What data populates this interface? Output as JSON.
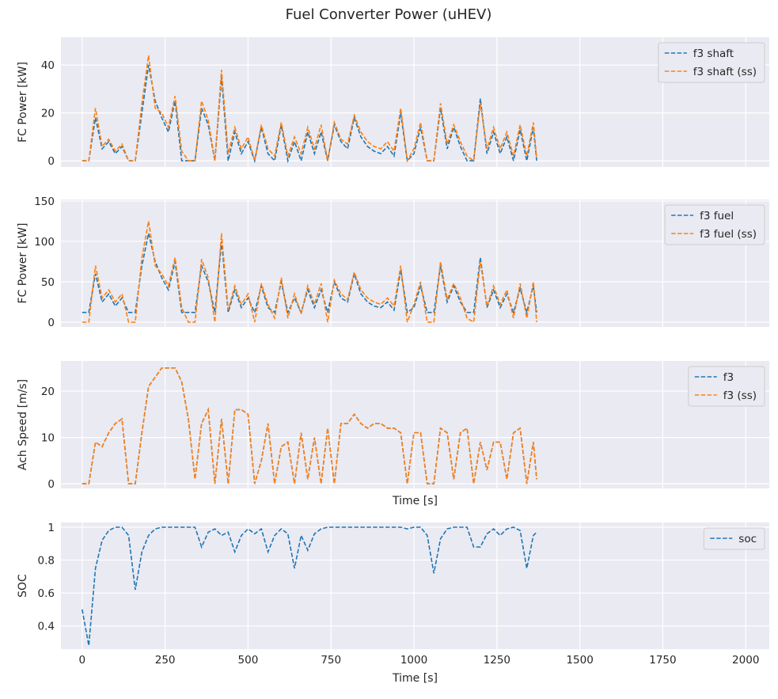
{
  "title": "Fuel Converter Power (uHEV)",
  "chart_data": [
    {
      "type": "line",
      "y_label": "FC Power [kW]",
      "legend": "upper right",
      "x": [
        0,
        20,
        40,
        60,
        80,
        100,
        120,
        140,
        160,
        180,
        200,
        220,
        240,
        260,
        280,
        300,
        320,
        340,
        360,
        380,
        400,
        420,
        440,
        460,
        480,
        500,
        520,
        540,
        560,
        580,
        600,
        620,
        640,
        660,
        680,
        700,
        720,
        740,
        760,
        780,
        800,
        820,
        840,
        860,
        880,
        900,
        920,
        940,
        960,
        980,
        1000,
        1020,
        1040,
        1060,
        1080,
        1100,
        1120,
        1140,
        1160,
        1180,
        1200,
        1220,
        1240,
        1260,
        1280,
        1300,
        1320,
        1340,
        1360,
        1370
      ],
      "ylim": [
        -2.6,
        51.6
      ],
      "yticks": [
        0,
        20,
        40
      ],
      "series": [
        {
          "name": "f3 shaft",
          "color": "#1f77b4",
          "values": [
            0,
            0,
            18,
            5,
            8,
            3,
            6,
            0,
            0,
            20,
            40,
            25,
            18,
            12,
            25,
            0,
            0,
            0,
            22,
            15,
            0,
            35,
            0,
            12,
            3,
            8,
            0,
            14,
            3,
            0,
            15,
            0,
            8,
            0,
            12,
            3,
            12,
            0,
            15,
            8,
            5,
            18,
            10,
            6,
            4,
            3,
            6,
            2,
            20,
            0,
            3,
            14,
            0,
            0,
            22,
            5,
            14,
            6,
            0,
            0,
            26,
            3,
            12,
            3,
            10,
            0,
            13,
            0,
            14,
            0
          ]
        },
        {
          "name": "f3 shaft (ss)",
          "color": "#ff7f0e",
          "values": [
            0,
            0,
            22,
            6,
            9,
            4,
            7,
            0,
            0,
            24,
            44,
            22,
            20,
            14,
            27,
            4,
            0,
            0,
            25,
            17,
            0,
            38,
            3,
            14,
            5,
            10,
            0,
            15,
            5,
            2,
            16,
            2,
            10,
            3,
            14,
            5,
            15,
            0,
            16,
            9,
            7,
            19,
            12,
            8,
            6,
            5,
            8,
            4,
            22,
            0,
            5,
            16,
            0,
            0,
            24,
            7,
            15,
            8,
            2,
            0,
            24,
            5,
            14,
            5,
            12,
            2,
            15,
            2,
            16,
            1
          ]
        }
      ]
    },
    {
      "type": "line",
      "y_label": "FC Power [kW]",
      "legend": "upper right",
      "x": [
        0,
        20,
        40,
        60,
        80,
        100,
        120,
        140,
        160,
        180,
        200,
        220,
        240,
        260,
        280,
        300,
        320,
        340,
        360,
        380,
        400,
        420,
        440,
        460,
        480,
        500,
        520,
        540,
        560,
        580,
        600,
        620,
        640,
        660,
        680,
        700,
        720,
        740,
        760,
        780,
        800,
        820,
        840,
        860,
        880,
        900,
        920,
        940,
        960,
        980,
        1000,
        1020,
        1040,
        1060,
        1080,
        1100,
        1120,
        1140,
        1160,
        1180,
        1200,
        1220,
        1240,
        1260,
        1280,
        1300,
        1320,
        1340,
        1360,
        1370
      ],
      "ylim": [
        -5.9,
        151.9
      ],
      "yticks": [
        0,
        50,
        100,
        150
      ],
      "series": [
        {
          "name": "f3 fuel",
          "color": "#1f77b4",
          "values": [
            12,
            12,
            60,
            25,
            35,
            20,
            30,
            12,
            12,
            70,
            110,
            75,
            55,
            40,
            75,
            12,
            12,
            12,
            70,
            50,
            12,
            100,
            12,
            40,
            18,
            30,
            12,
            45,
            18,
            12,
            50,
            12,
            30,
            12,
            40,
            18,
            40,
            12,
            50,
            30,
            25,
            60,
            35,
            25,
            20,
            18,
            25,
            15,
            65,
            12,
            18,
            45,
            12,
            12,
            70,
            25,
            45,
            25,
            12,
            12,
            80,
            18,
            40,
            18,
            35,
            12,
            42,
            12,
            45,
            12
          ]
        },
        {
          "name": "f3 fuel (ss)",
          "color": "#ff7f0e",
          "values": [
            0,
            0,
            70,
            30,
            40,
            25,
            35,
            0,
            0,
            80,
            125,
            70,
            60,
            45,
            80,
            18,
            0,
            0,
            78,
            55,
            0,
            110,
            15,
            45,
            22,
            35,
            0,
            48,
            22,
            5,
            55,
            5,
            35,
            10,
            45,
            22,
            48,
            0,
            52,
            35,
            28,
            62,
            40,
            30,
            25,
            22,
            30,
            20,
            70,
            0,
            22,
            50,
            0,
            0,
            75,
            28,
            48,
            30,
            5,
            0,
            75,
            20,
            45,
            22,
            40,
            5,
            48,
            5,
            50,
            0
          ]
        }
      ]
    },
    {
      "type": "line",
      "y_label": "Ach Speed [m/s]",
      "x_label": "Time [s]",
      "legend": "upper right",
      "x": [
        0,
        20,
        40,
        60,
        80,
        100,
        120,
        140,
        160,
        180,
        200,
        220,
        240,
        260,
        280,
        300,
        320,
        340,
        360,
        380,
        400,
        420,
        440,
        460,
        480,
        500,
        520,
        540,
        560,
        580,
        600,
        620,
        640,
        660,
        680,
        700,
        720,
        740,
        760,
        780,
        800,
        820,
        840,
        860,
        880,
        900,
        920,
        940,
        960,
        980,
        1000,
        1020,
        1040,
        1060,
        1080,
        1100,
        1120,
        1140,
        1160,
        1180,
        1200,
        1220,
        1240,
        1260,
        1280,
        1300,
        1320,
        1340,
        1360,
        1370
      ],
      "ylim": [
        -1.0,
        26.5
      ],
      "yticks": [
        0,
        10,
        20
      ],
      "series": [
        {
          "name": "f3",
          "color": "#1f77b4",
          "values": [
            0,
            0,
            9,
            8,
            11,
            13,
            14,
            0,
            0,
            11,
            21,
            23,
            25,
            25,
            25,
            22,
            14,
            1,
            13,
            16,
            0,
            14,
            0,
            16,
            16,
            15,
            0,
            5,
            13,
            0,
            8,
            9,
            0,
            11,
            1,
            10,
            0,
            12,
            0,
            13,
            13,
            15,
            13,
            12,
            13,
            13,
            12,
            12,
            11,
            0,
            11,
            11,
            0,
            0,
            12,
            11,
            1,
            11,
            12,
            0,
            9,
            3,
            9,
            9,
            1,
            11,
            12,
            0,
            9,
            1
          ]
        },
        {
          "name": "f3 (ss)",
          "color": "#ff7f0e",
          "values": [
            0,
            0,
            9,
            8,
            11,
            13,
            14,
            0,
            0,
            11,
            21,
            23,
            25,
            25,
            25,
            22,
            14,
            1,
            13,
            16,
            0,
            14,
            0,
            16,
            16,
            15,
            0,
            5,
            13,
            0,
            8,
            9,
            0,
            11,
            1,
            10,
            0,
            12,
            0,
            13,
            13,
            15,
            13,
            12,
            13,
            13,
            12,
            12,
            11,
            0,
            11,
            11,
            0,
            0,
            12,
            11,
            1,
            11,
            12,
            0,
            9,
            3,
            9,
            9,
            1,
            11,
            12,
            0,
            9,
            1
          ]
        }
      ]
    },
    {
      "type": "line",
      "y_label": "SOC",
      "x_label": "Time [s]",
      "legend": "upper right",
      "x": [
        0,
        20,
        40,
        60,
        80,
        100,
        120,
        140,
        160,
        180,
        200,
        220,
        240,
        260,
        280,
        300,
        320,
        340,
        360,
        380,
        400,
        420,
        440,
        460,
        480,
        500,
        520,
        540,
        560,
        580,
        600,
        620,
        640,
        660,
        680,
        700,
        720,
        740,
        760,
        780,
        800,
        820,
        840,
        860,
        880,
        900,
        920,
        940,
        960,
        980,
        1000,
        1020,
        1040,
        1060,
        1080,
        1100,
        1120,
        1140,
        1160,
        1180,
        1200,
        1220,
        1240,
        1260,
        1280,
        1300,
        1320,
        1340,
        1360,
        1370
      ],
      "xlim": [
        -64,
        2071
      ],
      "xticks": [
        0,
        250,
        500,
        750,
        1000,
        1250,
        1500,
        1750,
        2000
      ],
      "ylim": [
        0.259,
        1.029
      ],
      "yticks": [
        0.4,
        0.6,
        0.8,
        1.0
      ],
      "series": [
        {
          "name": "soc",
          "color": "#1f77b4",
          "values": [
            0.5,
            0.28,
            0.75,
            0.92,
            0.98,
            1.0,
            1.0,
            0.95,
            0.62,
            0.85,
            0.95,
            0.99,
            1.0,
            1.0,
            1.0,
            1.0,
            1.0,
            1.0,
            0.88,
            0.97,
            0.99,
            0.95,
            0.97,
            0.85,
            0.95,
            0.99,
            0.96,
            0.99,
            0.85,
            0.95,
            0.99,
            0.96,
            0.75,
            0.95,
            0.86,
            0.96,
            0.99,
            1.0,
            1.0,
            1.0,
            1.0,
            1.0,
            1.0,
            1.0,
            1.0,
            1.0,
            1.0,
            1.0,
            1.0,
            0.99,
            1.0,
            1.0,
            0.95,
            0.72,
            0.93,
            0.99,
            1.0,
            1.0,
            1.0,
            0.88,
            0.88,
            0.96,
            0.99,
            0.95,
            0.99,
            1.0,
            0.98,
            0.75,
            0.95,
            0.97
          ]
        }
      ]
    }
  ]
}
